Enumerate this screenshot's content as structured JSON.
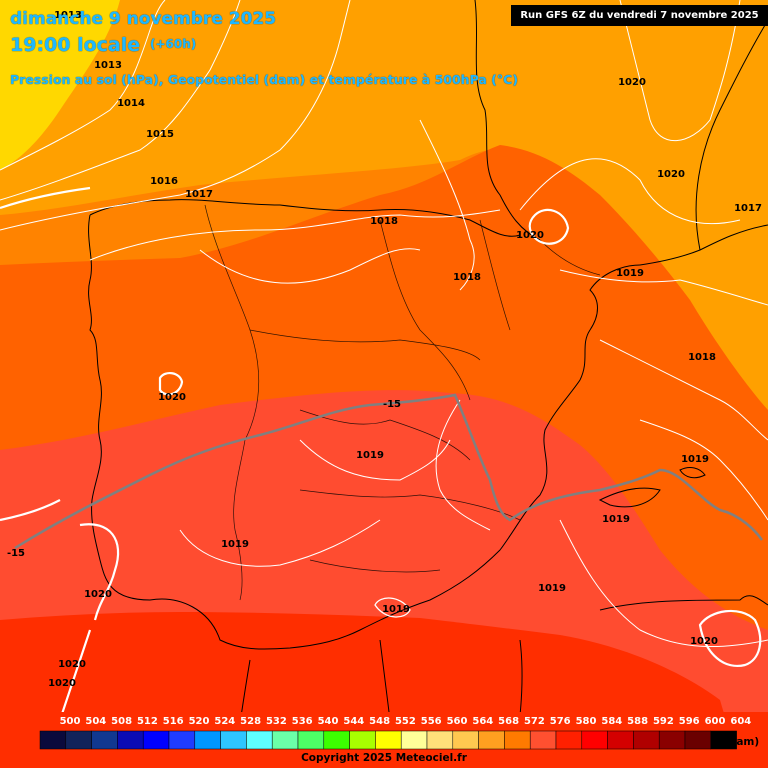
{
  "header": {
    "date": "dimanche 9 novembre 2025",
    "time": "19:00 locale",
    "lead": "(+60h)",
    "subtitle": "Pression au sol (hPa), Geopotentiel (dam) et température à 500hPa (°C)",
    "run_info": "Run GFS 6Z du vendredi 7 novembre 2025"
  },
  "isobar_labels": [
    "1013",
    "1013",
    "1014",
    "1015",
    "1016",
    "1017",
    "1018",
    "1018",
    "1020",
    "1020",
    "1020",
    "1017",
    "1019",
    "1018",
    "1020",
    "1019",
    "1019",
    "1019",
    "1019",
    "1019",
    "1019",
    "1020",
    "1020",
    "1020",
    "1020",
    "1017"
  ],
  "temperature_labels": [
    "-15",
    "-15"
  ],
  "legend": {
    "values": [
      "500",
      "504",
      "508",
      "512",
      "516",
      "520",
      "524",
      "528",
      "532",
      "536",
      "540",
      "544",
      "548",
      "552",
      "556",
      "560",
      "564",
      "568",
      "572",
      "576",
      "580",
      "584",
      "588",
      "592",
      "596",
      "600",
      "604"
    ],
    "colors": [
      "#0a0a3c",
      "#11235a",
      "#113890",
      "#0b0bb4",
      "#0000ff",
      "#1f3cff",
      "#0096ff",
      "#2ec5ff",
      "#5effff",
      "#6bffa8",
      "#4dff66",
      "#3cff00",
      "#a8ff00",
      "#ffff00",
      "#ffff99",
      "#ffe07a",
      "#ffc850",
      "#ffa020",
      "#ff7a00",
      "#ff5030",
      "#ff2000",
      "#ff0000",
      "#d40000",
      "#b00000",
      "#8a0000",
      "#6a0000",
      "#000000"
    ],
    "unit": "(dam)"
  },
  "copyright": "Copyright 2025 Meteociel.fr",
  "colors": {
    "title": "#1fb8ff",
    "band_560": "#ffd800",
    "band_564": "#ffa000",
    "band_568": "#ff8300",
    "band_572": "#ff6200",
    "band_576": "#ff4c30",
    "band_580": "#ff2e00",
    "isobar": "#ffffff",
    "isotherm": "#808080",
    "coast": "#000000"
  }
}
